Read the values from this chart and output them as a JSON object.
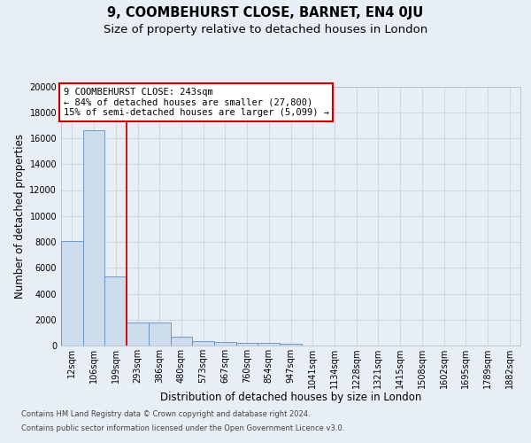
{
  "title_line1": "9, COOMBEHURST CLOSE, BARNET, EN4 0JU",
  "title_line2": "Size of property relative to detached houses in London",
  "xlabel": "Distribution of detached houses by size in London",
  "ylabel": "Number of detached properties",
  "footnote1": "Contains HM Land Registry data © Crown copyright and database right 2024.",
  "footnote2": "Contains public sector information licensed under the Open Government Licence v3.0.",
  "categories": [
    "12sqm",
    "106sqm",
    "199sqm",
    "293sqm",
    "386sqm",
    "480sqm",
    "573sqm",
    "667sqm",
    "760sqm",
    "854sqm",
    "947sqm",
    "1041sqm",
    "1134sqm",
    "1228sqm",
    "1321sqm",
    "1415sqm",
    "1508sqm",
    "1602sqm",
    "1695sqm",
    "1789sqm",
    "1882sqm"
  ],
  "values": [
    8100,
    16600,
    5300,
    1750,
    1750,
    650,
    370,
    290,
    220,
    180,
    130,
    0,
    0,
    0,
    0,
    0,
    0,
    0,
    0,
    0,
    0
  ],
  "bar_color": "#cddcec",
  "bar_edge_color": "#6090c0",
  "vline_after_bar_idx": 2,
  "vline_color": "#cc0000",
  "annotation_line1": "9 COOMBEHURST CLOSE: 243sqm",
  "annotation_line2": "← 84% of detached houses are smaller (27,800)",
  "annotation_line3": "15% of semi-detached houses are larger (5,099) →",
  "annotation_box_facecolor": "white",
  "annotation_box_edgecolor": "#cc0000",
  "ylim_max": 20000,
  "yticks": [
    0,
    2000,
    4000,
    6000,
    8000,
    10000,
    12000,
    14000,
    16000,
    18000,
    20000
  ],
  "background_color": "#e8eef5",
  "grid_color": "#d0d8e4",
  "title_fontsize": 10.5,
  "subtitle_fontsize": 9.5,
  "xlabel_fontsize": 8.5,
  "ylabel_fontsize": 8.5,
  "tick_fontsize": 7,
  "annotation_fontsize": 7.5,
  "footnote_fontsize": 6.0
}
